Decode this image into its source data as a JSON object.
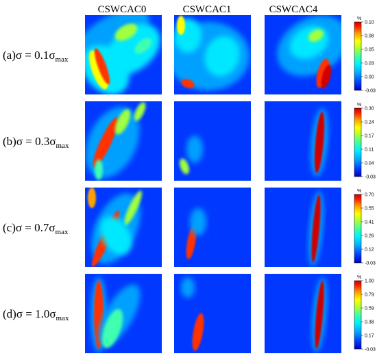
{
  "columns": [
    "CSWCAC0",
    "CSWCAC1",
    "CSWCAC4"
  ],
  "rows": [
    {
      "letter": "a",
      "coef": "0.1",
      "colorbar_unit": "%",
      "colorbar_ticks": [
        "0.10",
        "0.08",
        "0.05",
        "0.03",
        "0.00",
        "-0.03"
      ]
    },
    {
      "letter": "b",
      "coef": "0.3",
      "colorbar_unit": "%",
      "colorbar_ticks": [
        "0.30",
        "0.24",
        "0.17",
        "0.11",
        "0.04",
        "-0.03"
      ]
    },
    {
      "letter": "c",
      "coef": "0.7",
      "colorbar_unit": "%",
      "colorbar_ticks": [
        "0.70",
        "0.55",
        "0.41",
        "0.26",
        "0.12",
        "-0.03"
      ]
    },
    {
      "letter": "d",
      "coef": "1.0",
      "colorbar_unit": "%",
      "colorbar_ticks": [
        "1.00",
        "0.79",
        "0.59",
        "0.38",
        "0.17",
        "-0.03"
      ]
    }
  ],
  "label_parts": {
    "sigma": "σ",
    "equals": "=",
    "max_sub": "max"
  },
  "colormap": [
    "#0000c0",
    "#0038ff",
    "#00a0ff",
    "#00e8ff",
    "#40ffb0",
    "#a0ff40",
    "#ffff00",
    "#ffa000",
    "#ff3000",
    "#cc0000"
  ]
}
